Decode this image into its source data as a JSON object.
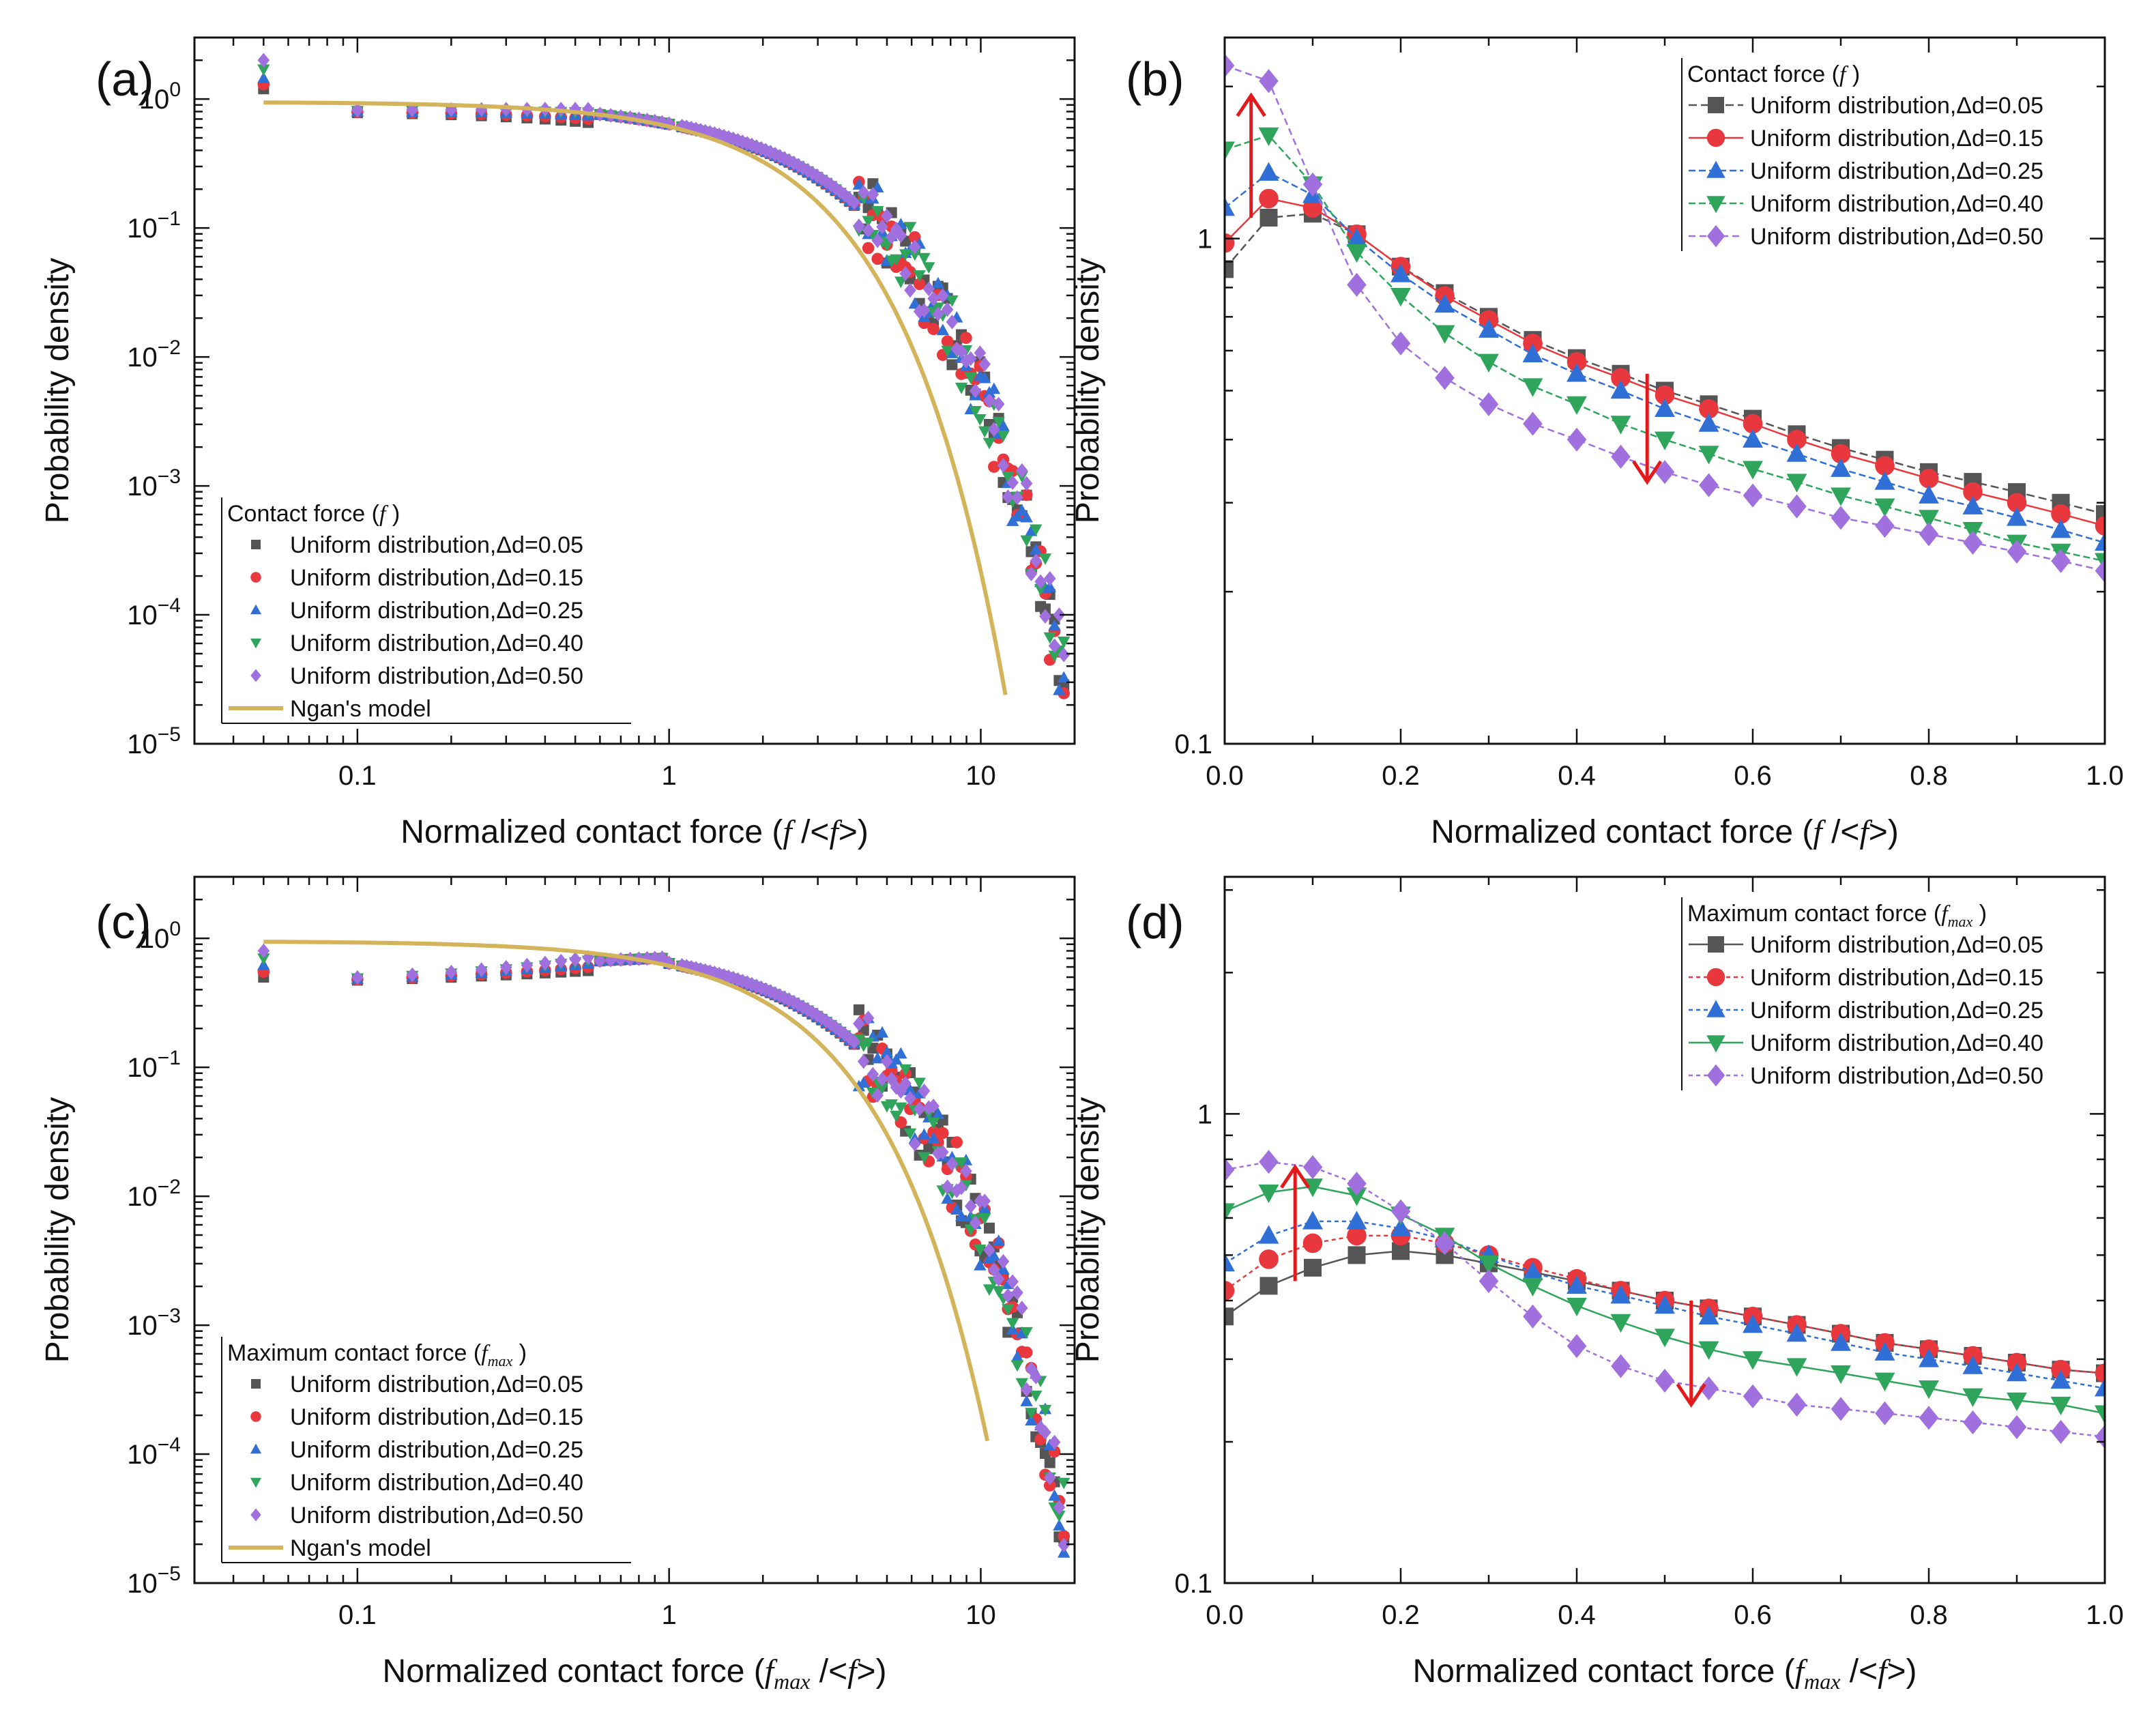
{
  "figure": {
    "colors": {
      "d005": "#555555",
      "d015": "#e8383d",
      "d025": "#2f6fd6",
      "d040": "#2fa55c",
      "d050": "#a070de",
      "model": "#d4b45a",
      "arrow": "#e31a1c"
    },
    "panels": [
      "(a)",
      "(b)",
      "(c)",
      "(d)"
    ]
  },
  "chart_data": [
    {
      "panel": "(a)",
      "type": "scatter",
      "xscale": "log",
      "yscale": "log",
      "xlim": [
        0.03,
        20
      ],
      "ylim": [
        1e-05,
        3
      ],
      "xticks": [
        "0.1",
        "1",
        "10"
      ],
      "yticks": [
        {
          "base": "10",
          "exp": "0"
        },
        {
          "base": "10",
          "exp": "−1"
        },
        {
          "base": "10",
          "exp": "−2"
        },
        {
          "base": "10",
          "exp": "−3"
        },
        {
          "base": "10",
          "exp": "−4"
        },
        {
          "base": "10",
          "exp": "−5"
        }
      ],
      "xlabel_pre": "Normalized contact force (",
      "xlabel_var": "f",
      "xlabel_mid": " /<",
      "xlabel_var2": "f",
      "xlabel_post": ">)",
      "ylabel": "Probability density",
      "legend": {
        "position": "bottom-left",
        "title_pre": "Contact force (",
        "title_var": "f",
        "title_post": " )",
        "entries": [
          "Uniform distribution,Δd=0.05",
          "Uniform distribution,Δd=0.15",
          "Uniform distribution,Δd=0.25",
          "Uniform distribution,Δd=0.40",
          "Uniform distribution,Δd=0.50",
          "Ngan's model"
        ]
      },
      "series": [
        {
          "name": "Uniform distribution,Δd=0.05",
          "marker": "square",
          "color": "#555555",
          "peak": 1.2,
          "tail": 0.8
        },
        {
          "name": "Uniform distribution,Δd=0.15",
          "marker": "circle",
          "color": "#e8383d",
          "peak": 1.3,
          "tail": 0.85
        },
        {
          "name": "Uniform distribution,Δd=0.25",
          "marker": "triangle-up",
          "color": "#2f6fd6",
          "peak": 1.45,
          "tail": 0.9
        },
        {
          "name": "Uniform distribution,Δd=0.40",
          "marker": "triangle-down",
          "color": "#2fa55c",
          "peak": 1.7,
          "tail": 1.0
        },
        {
          "name": "Uniform distribution,Δd=0.50",
          "marker": "diamond",
          "color": "#a070de",
          "peak": 2.0,
          "tail": 1.15
        }
      ],
      "model": {
        "name": "Ngan's model",
        "color": "#d4b45a",
        "x_end": 12
      }
    },
    {
      "panel": "(b)",
      "type": "line",
      "xscale": "linear",
      "yscale": "log",
      "xlim": [
        0,
        1
      ],
      "ylim": [
        0.1,
        2.5
      ],
      "xticks": [
        "0.0",
        "0.2",
        "0.4",
        "0.6",
        "0.8",
        "1.0"
      ],
      "yticks": [
        "1",
        "0.1"
      ],
      "xlabel_pre": "Normalized contact force (",
      "xlabel_var": "f",
      "xlabel_mid": " /<",
      "xlabel_var2": "f",
      "xlabel_post": ">)",
      "ylabel": "Probability density",
      "legend": {
        "position": "top-right",
        "title_pre": "Contact force (",
        "title_var": "f",
        "title_post": " )",
        "entries": [
          "Uniform distribution,Δd=0.05",
          "Uniform distribution,Δd=0.15",
          "Uniform distribution,Δd=0.25",
          "Uniform distribution,Δd=0.40",
          "Uniform distribution,Δd=0.50"
        ]
      },
      "x": [
        0,
        0.05,
        0.1,
        0.15,
        0.2,
        0.25,
        0.3,
        0.35,
        0.4,
        0.45,
        0.5,
        0.55,
        0.6,
        0.65,
        0.7,
        0.75,
        0.8,
        0.85,
        0.9,
        0.95,
        1.0
      ],
      "series": [
        {
          "name": "Uniform distribution,Δd=0.05",
          "marker": "square",
          "color": "#555555",
          "dash": "12,6",
          "values": [
            0.87,
            1.1,
            1.12,
            1.02,
            0.88,
            0.78,
            0.7,
            0.63,
            0.58,
            0.54,
            0.5,
            0.47,
            0.44,
            0.41,
            0.385,
            0.365,
            0.345,
            0.33,
            0.315,
            0.3,
            0.285
          ]
        },
        {
          "name": "Uniform distribution,Δd=0.15",
          "marker": "circle",
          "color": "#e8383d",
          "dash": "",
          "values": [
            0.98,
            1.2,
            1.15,
            1.02,
            0.88,
            0.77,
            0.69,
            0.62,
            0.57,
            0.53,
            0.49,
            0.46,
            0.43,
            0.4,
            0.375,
            0.355,
            0.335,
            0.315,
            0.3,
            0.285,
            0.27
          ]
        },
        {
          "name": "Uniform distribution,Δd=0.25",
          "marker": "triangle-up",
          "color": "#2f6fd6",
          "dash": "10,5",
          "values": [
            1.15,
            1.35,
            1.22,
            1.0,
            0.85,
            0.74,
            0.66,
            0.59,
            0.54,
            0.5,
            0.46,
            0.43,
            0.4,
            0.375,
            0.35,
            0.33,
            0.31,
            0.295,
            0.28,
            0.265,
            0.25
          ]
        },
        {
          "name": "Uniform distribution,Δd=0.40",
          "marker": "triangle-down",
          "color": "#2fa55c",
          "dash": "10,5",
          "values": [
            1.5,
            1.6,
            1.28,
            0.94,
            0.77,
            0.65,
            0.57,
            0.51,
            0.47,
            0.43,
            0.4,
            0.375,
            0.35,
            0.33,
            0.31,
            0.295,
            0.28,
            0.265,
            0.25,
            0.24,
            0.23
          ]
        },
        {
          "name": "Uniform distribution,Δd=0.50",
          "marker": "diamond",
          "color": "#a070de",
          "dash": "10,6",
          "values": [
            2.2,
            2.05,
            1.28,
            0.81,
            0.62,
            0.53,
            0.47,
            0.43,
            0.4,
            0.37,
            0.345,
            0.325,
            0.31,
            0.295,
            0.28,
            0.27,
            0.26,
            0.25,
            0.24,
            0.23,
            0.22
          ]
        }
      ],
      "arrows": [
        {
          "x": 0.03,
          "y_from": 1.1,
          "y_to": 1.92
        },
        {
          "x": 0.48,
          "y_from": 0.54,
          "y_to": 0.33
        }
      ]
    },
    {
      "panel": "(c)",
      "type": "scatter",
      "xscale": "log",
      "yscale": "log",
      "xlim": [
        0.03,
        20
      ],
      "ylim": [
        1e-05,
        3
      ],
      "xticks": [
        "0.1",
        "1",
        "10"
      ],
      "yticks": [
        {
          "base": "10",
          "exp": "0"
        },
        {
          "base": "10",
          "exp": "−1"
        },
        {
          "base": "10",
          "exp": "−2"
        },
        {
          "base": "10",
          "exp": "−3"
        },
        {
          "base": "10",
          "exp": "−4"
        },
        {
          "base": "10",
          "exp": "−5"
        }
      ],
      "xlabel_pre": "Normalized contact force (",
      "xlabel_var": "f",
      "xlabel_sub": "max",
      "xlabel_mid": " /<",
      "xlabel_var2": "f",
      "xlabel_post": ">)",
      "ylabel": "Probability density",
      "legend": {
        "position": "bottom-left",
        "title_pre": "Maximum contact force (",
        "title_var": "f",
        "title_sub": "max",
        "title_post": " )",
        "entries": [
          "Uniform distribution,Δd=0.05",
          "Uniform distribution,Δd=0.15",
          "Uniform distribution,Δd=0.25",
          "Uniform distribution,Δd=0.40",
          "Uniform distribution,Δd=0.50",
          "Ngan's model"
        ]
      },
      "series": [
        {
          "name": "Uniform distribution,Δd=0.05",
          "marker": "square",
          "color": "#555555",
          "peak": 0.5,
          "tail": 0.85
        },
        {
          "name": "Uniform distribution,Δd=0.15",
          "marker": "circle",
          "color": "#e8383d",
          "peak": 0.55,
          "tail": 0.9
        },
        {
          "name": "Uniform distribution,Δd=0.25",
          "marker": "triangle-up",
          "color": "#2f6fd6",
          "peak": 0.62,
          "tail": 0.95
        },
        {
          "name": "Uniform distribution,Δd=0.40",
          "marker": "triangle-down",
          "color": "#2fa55c",
          "peak": 0.7,
          "tail": 1.05
        },
        {
          "name": "Uniform distribution,Δd=0.50",
          "marker": "diamond",
          "color": "#a070de",
          "peak": 0.8,
          "tail": 1.15
        }
      ],
      "model": {
        "name": "Ngan's model",
        "color": "#d4b45a",
        "x_end": 10.5
      }
    },
    {
      "panel": "(d)",
      "type": "line",
      "xscale": "linear",
      "yscale": "log",
      "xlim": [
        0,
        1
      ],
      "ylim": [
        0.1,
        3.2
      ],
      "xticks": [
        "0.0",
        "0.2",
        "0.4",
        "0.6",
        "0.8",
        "1.0"
      ],
      "yticks": [
        "1",
        "0.1"
      ],
      "xlabel_pre": "Normalized contact force (",
      "xlabel_var": "f",
      "xlabel_sub": "max",
      "xlabel_mid": " /<",
      "xlabel_var2": "f",
      "xlabel_post": ">)",
      "ylabel": "Probability density",
      "legend": {
        "position": "top-right",
        "title_pre": "Maximum contact force (",
        "title_var": "f",
        "title_sub": "max",
        "title_post": " )",
        "entries": [
          "Uniform distribution,Δd=0.05",
          "Uniform distribution,Δd=0.15",
          "Uniform distribution,Δd=0.25",
          "Uniform distribution,Δd=0.40",
          "Uniform distribution,Δd=0.50"
        ]
      },
      "x": [
        0,
        0.05,
        0.1,
        0.15,
        0.2,
        0.25,
        0.3,
        0.35,
        0.4,
        0.45,
        0.5,
        0.55,
        0.6,
        0.65,
        0.7,
        0.75,
        0.8,
        0.85,
        0.9,
        0.95,
        1.0
      ],
      "series": [
        {
          "name": "Uniform distribution,Δd=0.05",
          "marker": "square",
          "color": "#555555",
          "dash": "",
          "values": [
            0.37,
            0.43,
            0.47,
            0.5,
            0.51,
            0.5,
            0.48,
            0.46,
            0.44,
            0.42,
            0.4,
            0.385,
            0.37,
            0.355,
            0.34,
            0.325,
            0.315,
            0.305,
            0.295,
            0.285,
            0.28
          ]
        },
        {
          "name": "Uniform distribution,Δd=0.15",
          "marker": "circle",
          "color": "#e8383d",
          "dash": "6,5",
          "values": [
            0.42,
            0.49,
            0.53,
            0.55,
            0.55,
            0.53,
            0.5,
            0.47,
            0.445,
            0.42,
            0.4,
            0.385,
            0.37,
            0.355,
            0.34,
            0.325,
            0.315,
            0.305,
            0.295,
            0.285,
            0.28
          ]
        },
        {
          "name": "Uniform distribution,Δd=0.25",
          "marker": "triangle-up",
          "color": "#2f6fd6",
          "dash": "6,5",
          "values": [
            0.48,
            0.55,
            0.59,
            0.59,
            0.57,
            0.54,
            0.5,
            0.46,
            0.43,
            0.41,
            0.39,
            0.37,
            0.355,
            0.34,
            0.325,
            0.31,
            0.3,
            0.29,
            0.28,
            0.27,
            0.26
          ]
        },
        {
          "name": "Uniform distribution,Δd=0.40",
          "marker": "triangle-down",
          "color": "#2fa55c",
          "dash": "",
          "values": [
            0.62,
            0.68,
            0.7,
            0.67,
            0.61,
            0.55,
            0.48,
            0.43,
            0.39,
            0.36,
            0.335,
            0.315,
            0.3,
            0.29,
            0.28,
            0.27,
            0.26,
            0.25,
            0.245,
            0.24,
            0.23
          ]
        },
        {
          "name": "Uniform distribution,Δd=0.50",
          "marker": "diamond",
          "color": "#a070de",
          "dash": "6,5",
          "values": [
            0.76,
            0.79,
            0.77,
            0.71,
            0.62,
            0.53,
            0.44,
            0.37,
            0.32,
            0.29,
            0.27,
            0.26,
            0.25,
            0.24,
            0.235,
            0.23,
            0.225,
            0.22,
            0.215,
            0.21,
            0.205
          ]
        }
      ],
      "arrows": [
        {
          "x": 0.08,
          "y_from": 0.44,
          "y_to": 0.77
        },
        {
          "x": 0.53,
          "y_from": 0.4,
          "y_to": 0.24
        }
      ]
    }
  ]
}
